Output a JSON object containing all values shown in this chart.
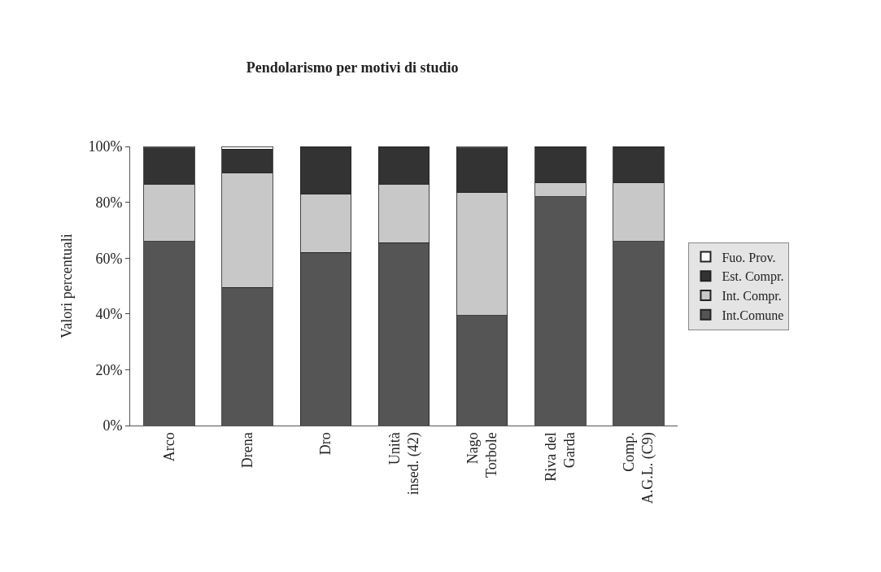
{
  "chart_data": {
    "type": "bar",
    "stacked": true,
    "title": "Pendolarismo per motivi di studio",
    "ylabel": "Valori percentuali",
    "categories": [
      "Arco",
      "Drena",
      "Dro",
      "Unità\ninsed. (42)",
      "Nago\nTorbole",
      "Riva del\nGarda",
      "Comp.\nA.G.L. (C9)"
    ],
    "series": [
      {
        "name": "Int.Comune",
        "color": "#555555",
        "values": [
          66,
          49.5,
          62,
          65.5,
          39.5,
          82,
          66
        ]
      },
      {
        "name": "Int. Compr.",
        "color": "#c8c8c8",
        "values": [
          20.5,
          41,
          21,
          21,
          44,
          5,
          21
        ]
      },
      {
        "name": "Est. Compr.",
        "color": "#333333",
        "values": [
          13,
          8.5,
          17,
          13.5,
          16,
          13,
          13
        ]
      },
      {
        "name": "Fuo. Prov.",
        "color": "#ffffff",
        "values": [
          0.5,
          1,
          0,
          0,
          0.5,
          0,
          0
        ]
      }
    ],
    "ylim": [
      0,
      100
    ],
    "yticks": [
      {
        "value": 0,
        "label": "0%"
      },
      {
        "value": 20,
        "label": "20%"
      },
      {
        "value": 40,
        "label": "40%"
      },
      {
        "value": 60,
        "label": "60%"
      },
      {
        "value": 80,
        "label": "80%"
      },
      {
        "value": 100,
        "label": "100%"
      }
    ],
    "legend": "right"
  }
}
